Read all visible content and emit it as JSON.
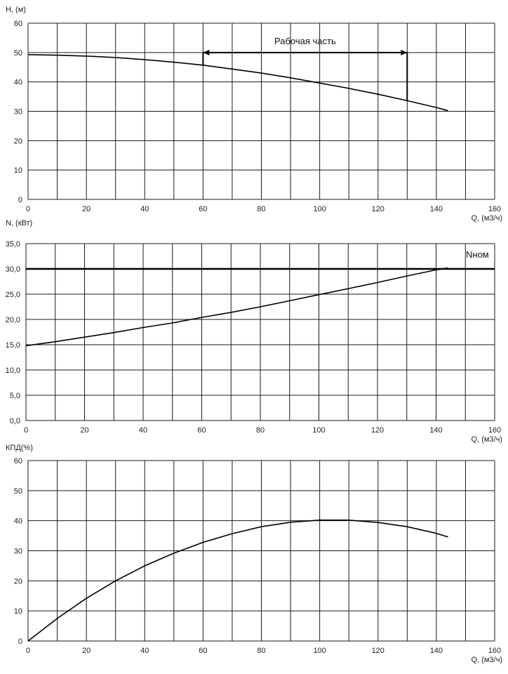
{
  "chart_data": [
    {
      "type": "line",
      "ylabel": "H, (м)",
      "xlabel": "Q, (м3/ч)",
      "xlim": [
        0,
        160
      ],
      "ylim": [
        0,
        60
      ],
      "x_ticks": [
        "0",
        "20",
        "40",
        "60",
        "80",
        "100",
        "120",
        "140",
        "160"
      ],
      "y_ticks": [
        "0",
        "10",
        "20",
        "30",
        "40",
        "50",
        "60"
      ],
      "grid": true,
      "series": [
        {
          "x": [
            0,
            10,
            20,
            30,
            40,
            50,
            60,
            70,
            80,
            90,
            100,
            110,
            120,
            130,
            140,
            144
          ],
          "values": [
            49.3,
            49.1,
            48.8,
            48.3,
            47.6,
            46.7,
            45.7,
            44.4,
            43.0,
            41.4,
            39.6,
            37.8,
            35.8,
            33.6,
            31.3,
            30.2
          ]
        }
      ],
      "annotation": {
        "text": "Рабочая часть",
        "x_start": 60,
        "x_end": 130,
        "y": 50,
        "y_start_drop": 45.7,
        "y_end_drop": 33.6
      }
    },
    {
      "type": "line",
      "ylabel": "N, (кВт)",
      "xlabel": "Q, (м3/ч)",
      "xlim": [
        0,
        160
      ],
      "ylim": [
        0,
        35
      ],
      "x_ticks": [
        "0",
        "20",
        "40",
        "60",
        "80",
        "100",
        "120",
        "140",
        "160"
      ],
      "y_ticks": [
        "0,0",
        "5,0",
        "10,0",
        "15,0",
        "20,0",
        "25,0",
        "30,0",
        "35,0"
      ],
      "grid": true,
      "series": [
        {
          "x": [
            0,
            10,
            20,
            30,
            40,
            50,
            60,
            70,
            80,
            90,
            100,
            110,
            120,
            130,
            140,
            144
          ],
          "values": [
            14.8,
            15.6,
            16.5,
            17.4,
            18.4,
            19.3,
            20.4,
            21.4,
            22.5,
            23.7,
            24.9,
            26.1,
            27.3,
            28.6,
            29.8,
            30.2
          ]
        }
      ],
      "reference_line": {
        "label": "Nном",
        "y": 30.0
      }
    },
    {
      "type": "line",
      "ylabel": "КПД(%)",
      "xlabel": "Q, (м3/ч)",
      "xlim": [
        0,
        160
      ],
      "ylim": [
        0,
        60
      ],
      "x_ticks": [
        "0",
        "20",
        "40",
        "60",
        "80",
        "100",
        "120",
        "140",
        "160"
      ],
      "y_ticks": [
        "0",
        "10",
        "20",
        "30",
        "40",
        "50",
        "60"
      ],
      "grid": true,
      "series": [
        {
          "x": [
            0,
            10,
            20,
            30,
            40,
            50,
            60,
            70,
            80,
            90,
            100,
            110,
            120,
            130,
            140,
            144
          ],
          "values": [
            0,
            7.5,
            14.2,
            20.0,
            25.0,
            29.2,
            32.8,
            35.7,
            38.0,
            39.5,
            40.2,
            40.2,
            39.4,
            38.0,
            35.8,
            34.6
          ]
        }
      ]
    }
  ]
}
